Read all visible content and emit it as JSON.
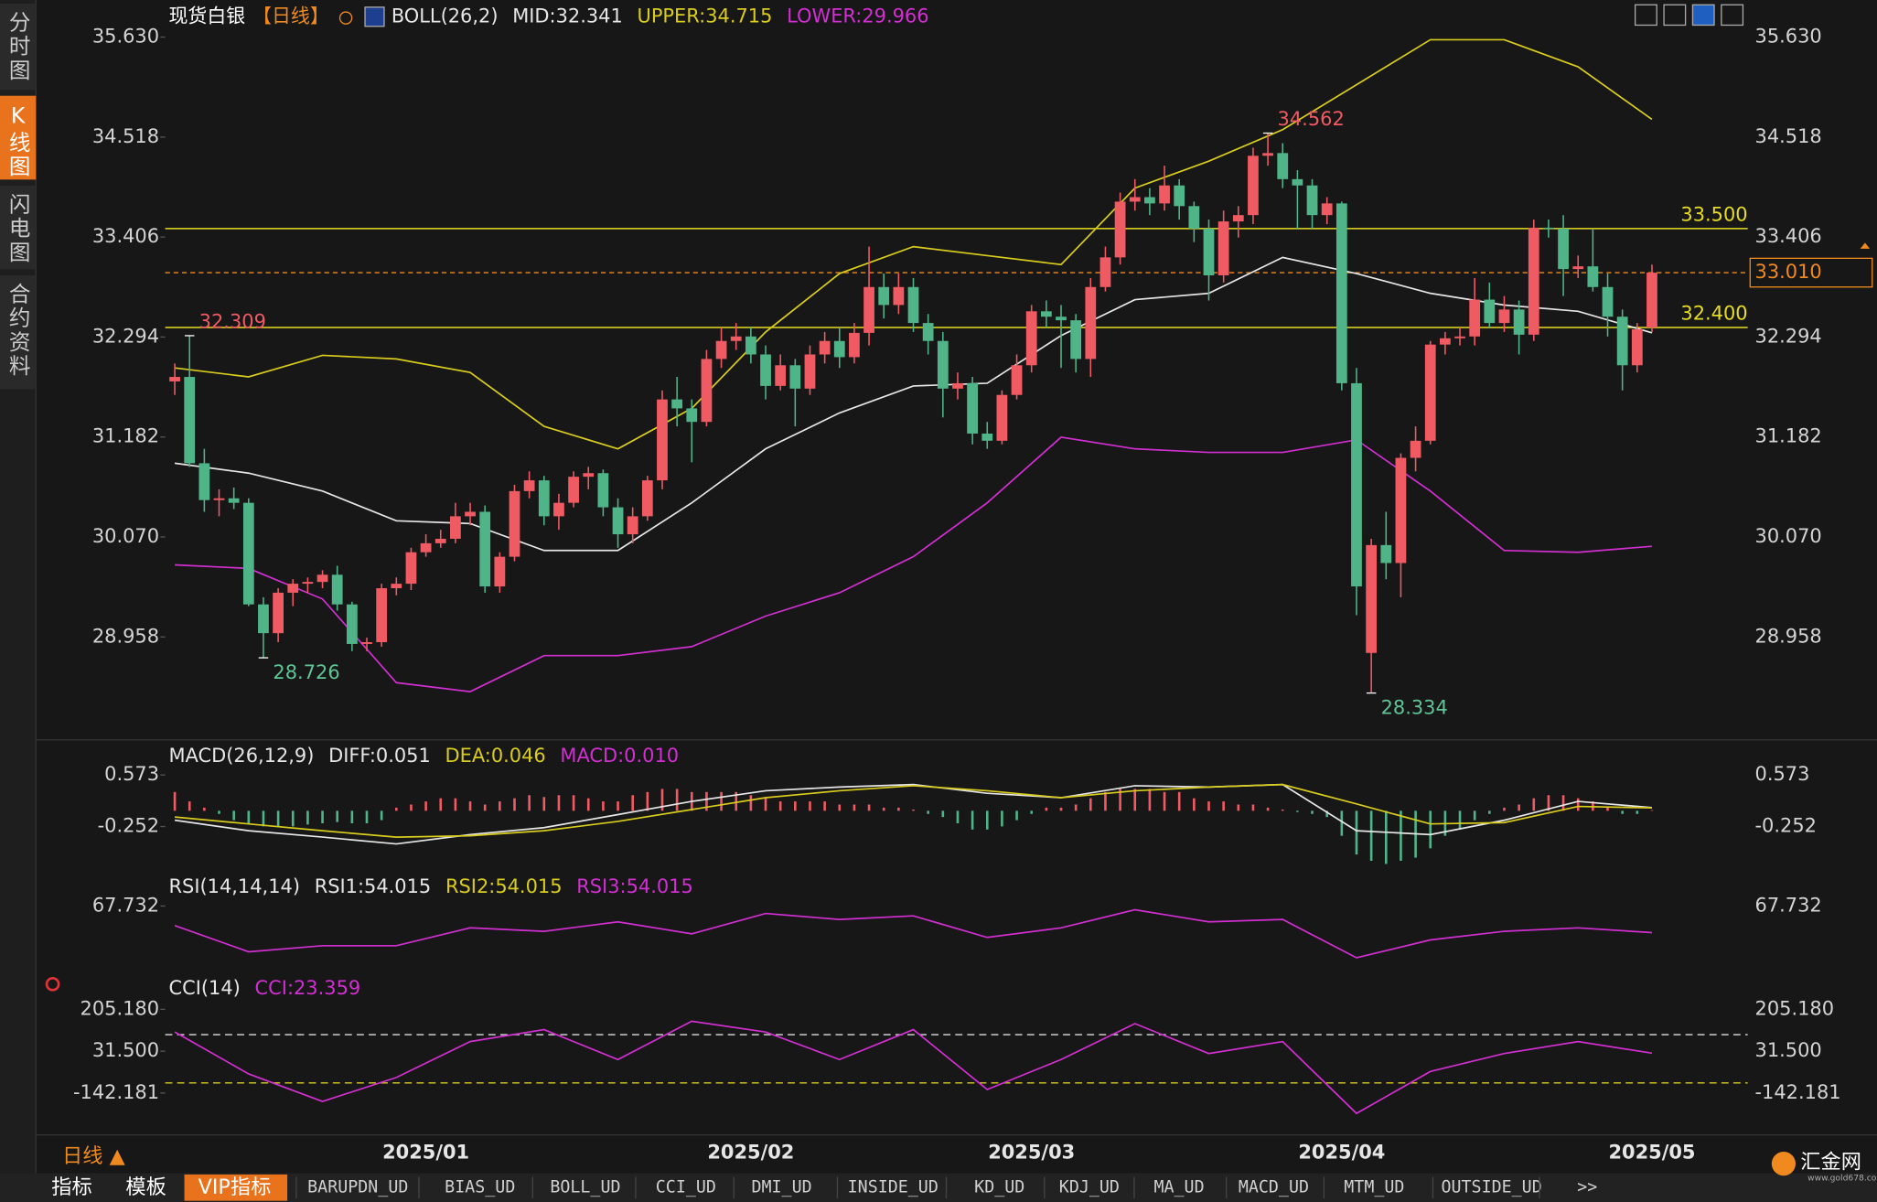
{
  "sidebar": [
    "分时图",
    "K线图",
    "闪电图",
    "合约资料"
  ],
  "bottom_label": "日线 ▲",
  "tabs": [
    "指标",
    "模板",
    "VIP指标",
    "BARUPDN_UD",
    "BIAS_UD",
    "BOLL_UD",
    "CCI_UD",
    "DMI_UD",
    "INSIDE_UD",
    "KD_UD",
    "KDJ_UD",
    "MA_UD",
    "MACD_UD",
    "MTM_UD",
    "OUTSIDE_UD",
    ">>"
  ],
  "logo": {
    "name": "汇金网",
    "url": "www.gold678.com"
  },
  "chart_data": [
    {
      "type": "candlestick",
      "title": "现货白银",
      "period": "【日线】",
      "legend": [
        {
          "text": "BOLL(26,2)",
          "color": "#e6e6e6"
        },
        {
          "text": "MID:32.341",
          "color": "#e6e6e6"
        },
        {
          "text": "UPPER:34.715",
          "color": "#d9cc1e"
        },
        {
          "text": "LOWER:29.966",
          "color": "#d22fd2"
        }
      ],
      "up_color": "#ef5a63",
      "down_color": "#4fb487",
      "categories": [
        null,
        null,
        null,
        null,
        null,
        null,
        null,
        null,
        null,
        null,
        null,
        null,
        null,
        null,
        null,
        null,
        null,
        "2025/01",
        null,
        null,
        null,
        null,
        null,
        null,
        null,
        null,
        null,
        null,
        null,
        null,
        null,
        null,
        null,
        null,
        null,
        null,
        null,
        null,
        null,
        "2025/02",
        null,
        null,
        null,
        null,
        null,
        null,
        null,
        null,
        null,
        null,
        null,
        null,
        null,
        null,
        null,
        null,
        null,
        null,
        "2025/03",
        null,
        null,
        null,
        null,
        null,
        null,
        null,
        null,
        null,
        null,
        null,
        null,
        null,
        null,
        null,
        null,
        null,
        null,
        null,
        null,
        "2025/04",
        null,
        null,
        null,
        null,
        null,
        null,
        null,
        null,
        null,
        null,
        null,
        null,
        null,
        null,
        null,
        null,
        null,
        null,
        null,
        null,
        "2025/05"
      ],
      "candles": [
        [
          31.8,
          32.0,
          31.65,
          31.85
        ],
        [
          31.85,
          32.309,
          30.85,
          30.89
        ],
        [
          30.89,
          31.05,
          30.35,
          30.48
        ],
        [
          30.48,
          30.6,
          30.3,
          30.5
        ],
        [
          30.5,
          30.62,
          30.38,
          30.45
        ],
        [
          30.45,
          30.5,
          29.3,
          29.32
        ],
        [
          29.32,
          29.4,
          28.726,
          29.0
        ],
        [
          29.0,
          29.5,
          28.9,
          29.45
        ],
        [
          29.45,
          29.6,
          29.3,
          29.55
        ],
        [
          29.55,
          29.62,
          29.45,
          29.57
        ],
        [
          29.57,
          29.7,
          29.5,
          29.65
        ],
        [
          29.65,
          29.75,
          29.25,
          29.32
        ],
        [
          29.32,
          29.35,
          28.8,
          28.88
        ],
        [
          28.88,
          28.95,
          28.8,
          28.9
        ],
        [
          28.9,
          29.55,
          28.85,
          29.5
        ],
        [
          29.5,
          29.62,
          29.42,
          29.55
        ],
        [
          29.55,
          29.95,
          29.48,
          29.9
        ],
        [
          29.9,
          30.1,
          29.85,
          30.0
        ],
        [
          30.0,
          30.15,
          29.95,
          30.05
        ],
        [
          30.05,
          30.45,
          30.0,
          30.3
        ],
        [
          30.3,
          30.45,
          30.2,
          30.35
        ],
        [
          30.35,
          30.42,
          29.45,
          29.52
        ],
        [
          29.52,
          29.9,
          29.45,
          29.85
        ],
        [
          29.85,
          30.65,
          29.8,
          30.58
        ],
        [
          30.58,
          30.8,
          30.5,
          30.7
        ],
        [
          30.7,
          30.75,
          30.2,
          30.3
        ],
        [
          30.3,
          30.55,
          30.15,
          30.45
        ],
        [
          30.45,
          30.8,
          30.4,
          30.74
        ],
        [
          30.74,
          30.85,
          30.6,
          30.78
        ],
        [
          30.78,
          30.82,
          30.3,
          30.4
        ],
        [
          30.4,
          30.5,
          29.95,
          30.1
        ],
        [
          30.1,
          30.4,
          30.0,
          30.3
        ],
        [
          30.3,
          30.75,
          30.25,
          30.7
        ],
        [
          30.7,
          31.7,
          30.6,
          31.6
        ],
        [
          31.6,
          31.85,
          31.3,
          31.5
        ],
        [
          31.5,
          31.6,
          30.9,
          31.35
        ],
        [
          31.35,
          32.15,
          31.3,
          32.05
        ],
        [
          32.05,
          32.4,
          31.95,
          32.25
        ],
        [
          32.25,
          32.45,
          32.15,
          32.3
        ],
        [
          32.3,
          32.4,
          32.0,
          32.1
        ],
        [
          32.1,
          32.2,
          31.6,
          31.75
        ],
        [
          31.75,
          32.1,
          31.7,
          31.98
        ],
        [
          31.98,
          32.05,
          31.3,
          31.72
        ],
        [
          31.72,
          32.2,
          31.65,
          32.1
        ],
        [
          32.1,
          32.35,
          32.0,
          32.25
        ],
        [
          32.25,
          32.4,
          31.95,
          32.07
        ],
        [
          32.07,
          32.45,
          32.0,
          32.34
        ],
        [
          32.34,
          33.3,
          32.2,
          32.85
        ],
        [
          32.85,
          33.0,
          32.5,
          32.65
        ],
        [
          32.65,
          33.0,
          32.55,
          32.85
        ],
        [
          32.85,
          32.95,
          32.35,
          32.45
        ],
        [
          32.45,
          32.55,
          32.1,
          32.25
        ],
        [
          32.25,
          32.35,
          31.4,
          31.72
        ],
        [
          31.72,
          31.9,
          31.6,
          31.78
        ],
        [
          31.78,
          31.85,
          31.1,
          31.22
        ],
        [
          31.22,
          31.35,
          31.05,
          31.14
        ],
        [
          31.14,
          31.7,
          31.1,
          31.65
        ],
        [
          31.65,
          32.1,
          31.6,
          31.98
        ],
        [
          31.98,
          32.65,
          31.9,
          32.58
        ],
        [
          32.58,
          32.7,
          32.4,
          32.52
        ],
        [
          32.52,
          32.65,
          31.95,
          32.48
        ],
        [
          32.48,
          32.55,
          31.9,
          32.05
        ],
        [
          32.05,
          32.95,
          31.85,
          32.85
        ],
        [
          32.85,
          33.3,
          32.8,
          33.18
        ],
        [
          33.18,
          33.9,
          33.1,
          33.8
        ],
        [
          33.8,
          34.05,
          33.7,
          33.85
        ],
        [
          33.85,
          33.95,
          33.65,
          33.78
        ],
        [
          33.78,
          34.2,
          33.7,
          33.98
        ],
        [
          33.98,
          34.05,
          33.6,
          33.75
        ],
        [
          33.75,
          33.8,
          33.35,
          33.5
        ],
        [
          33.5,
          33.6,
          32.7,
          32.98
        ],
        [
          32.98,
          33.7,
          32.9,
          33.58
        ],
        [
          33.58,
          33.75,
          33.4,
          33.65
        ],
        [
          33.65,
          34.4,
          33.55,
          34.31
        ],
        [
          34.31,
          34.562,
          34.2,
          34.34
        ],
        [
          34.34,
          34.45,
          33.95,
          34.05
        ],
        [
          34.05,
          34.15,
          33.5,
          33.98
        ],
        [
          33.98,
          34.05,
          33.5,
          33.65
        ],
        [
          33.65,
          33.85,
          33.55,
          33.78
        ],
        [
          33.78,
          33.8,
          31.7,
          31.78
        ],
        [
          31.78,
          31.95,
          29.2,
          29.52
        ],
        [
          28.78,
          30.05,
          28.334,
          29.98
        ],
        [
          29.98,
          30.35,
          29.6,
          29.78
        ],
        [
          29.78,
          31.0,
          29.4,
          30.95
        ],
        [
          30.95,
          31.3,
          30.8,
          31.14
        ],
        [
          31.14,
          32.25,
          31.1,
          32.21
        ],
        [
          32.21,
          32.35,
          32.1,
          32.28
        ],
        [
          32.28,
          32.4,
          32.2,
          32.3
        ],
        [
          32.3,
          32.95,
          32.2,
          32.71
        ],
        [
          32.71,
          32.9,
          32.4,
          32.45
        ],
        [
          32.45,
          32.75,
          32.35,
          32.6
        ],
        [
          32.6,
          32.7,
          32.1,
          32.32
        ],
        [
          32.32,
          33.6,
          32.25,
          33.51
        ],
        [
          33.51,
          33.6,
          33.4,
          33.5
        ],
        [
          33.5,
          33.65,
          32.75,
          33.05
        ],
        [
          33.05,
          33.2,
          32.95,
          33.08
        ],
        [
          33.08,
          33.5,
          32.8,
          32.85
        ],
        [
          32.85,
          33.0,
          32.3,
          32.52
        ],
        [
          32.52,
          32.6,
          31.7,
          31.98
        ],
        [
          31.98,
          32.45,
          31.9,
          32.38
        ],
        [
          32.4,
          33.1,
          32.35,
          33.01
        ]
      ],
      "x": [
        0,
        5,
        10,
        15,
        20,
        25,
        30,
        35,
        40,
        45,
        50,
        55,
        60,
        65,
        70,
        75,
        80,
        85,
        90,
        95,
        100
      ],
      "series": [
        {
          "color": "#e6e6e6",
          "values": [
            30.89,
            30.78,
            30.58,
            30.25,
            30.22,
            29.92,
            29.92,
            30.45,
            31.05,
            31.45,
            31.75,
            31.78,
            32.31,
            32.71,
            32.78,
            33.18,
            33.0,
            32.78,
            32.65,
            32.58,
            32.341
          ]
        },
        {
          "color": "#d9cc1e",
          "values": [
            31.95,
            31.85,
            32.09,
            32.05,
            31.9,
            31.3,
            31.05,
            31.5,
            32.35,
            33.0,
            33.3,
            33.2,
            33.1,
            33.95,
            34.25,
            34.6,
            35.1,
            35.6,
            35.6,
            35.3,
            34.715
          ]
        },
        {
          "color": "#d22fd2",
          "values": [
            29.76,
            29.72,
            29.38,
            28.45,
            28.35,
            28.75,
            28.75,
            28.85,
            29.19,
            29.45,
            29.85,
            30.45,
            31.18,
            31.05,
            31.01,
            31.01,
            31.15,
            30.58,
            29.92,
            29.9,
            29.966
          ]
        }
      ],
      "price_lines": [
        {
          "value": 33.5,
          "label": "33.500",
          "color": "#e6dc22"
        },
        {
          "value": 32.4,
          "label": "32.400",
          "color": "#e6dc22"
        }
      ],
      "last_price": {
        "value": 33.01,
        "label": "33.010",
        "color": "#f08a1e"
      },
      "annotations": [
        {
          "value": 32.309,
          "kind": "high"
        },
        {
          "value": 28.726,
          "kind": "low"
        },
        {
          "value": 34.562,
          "kind": "high"
        },
        {
          "value": 28.334,
          "kind": "low"
        }
      ],
      "ylim": [
        27.893,
        35.976
      ],
      "yticks": [
        {
          "value": 35.63,
          "label": "35.630"
        },
        34.518,
        33.406,
        32.294,
        31.182,
        {
          "value": 30.07,
          "label": "30.070"
        },
        28.958
      ]
    },
    {
      "type": "macd",
      "legend": [
        {
          "text": "MACD(26,12,9)",
          "color": "#e6e6e6"
        },
        {
          "text": "DIFF:0.051",
          "color": "#e6e6e6"
        },
        {
          "text": "DEA:0.046",
          "color": "#d9cc1e"
        },
        {
          "text": "MACD:0.010",
          "color": "#d22fd2"
        }
      ],
      "x": [
        0,
        5,
        10,
        15,
        20,
        25,
        30,
        35,
        40,
        45,
        50,
        55,
        60,
        65,
        70,
        75,
        80,
        85,
        90,
        95,
        100
      ],
      "series": [
        {
          "color": "#e6e6e6",
          "values": [
            -0.15,
            -0.32,
            -0.42,
            -0.53,
            -0.38,
            -0.27,
            -0.06,
            0.15,
            0.32,
            0.38,
            0.42,
            0.28,
            0.21,
            0.4,
            0.38,
            0.42,
            -0.32,
            -0.38,
            -0.15,
            0.15,
            0.051
          ]
        },
        {
          "color": "#d9cc1e",
          "values": [
            -0.1,
            -0.21,
            -0.32,
            -0.42,
            -0.4,
            -0.32,
            -0.17,
            0.02,
            0.21,
            0.32,
            0.4,
            0.32,
            0.21,
            0.32,
            0.38,
            0.42,
            0.11,
            -0.21,
            -0.19,
            0.07,
            0.046
          ]
        }
      ],
      "histogram": [
        0.3,
        0.15,
        0.05,
        -0.05,
        -0.15,
        -0.2,
        -0.25,
        -0.25,
        -0.25,
        -0.22,
        -0.2,
        -0.18,
        -0.2,
        -0.2,
        -0.15,
        0.05,
        0.1,
        0.15,
        0.2,
        0.2,
        0.15,
        0.1,
        0.15,
        0.2,
        0.25,
        0.22,
        0.25,
        0.25,
        0.2,
        0.15,
        0.15,
        0.25,
        0.3,
        0.35,
        0.35,
        0.3,
        0.3,
        0.3,
        0.3,
        0.25,
        0.2,
        0.15,
        0.15,
        0.15,
        0.15,
        0.1,
        0.1,
        0.1,
        0.05,
        0.05,
        0.02,
        -0.05,
        -0.1,
        -0.2,
        -0.3,
        -0.3,
        -0.25,
        -0.15,
        -0.05,
        0.05,
        0.05,
        0.1,
        0.2,
        0.3,
        0.35,
        0.35,
        0.35,
        0.3,
        0.3,
        0.2,
        0.15,
        0.15,
        0.1,
        0.1,
        0.05,
        0.02,
        -0.02,
        -0.05,
        -0.1,
        -0.4,
        -0.7,
        -0.8,
        -0.85,
        -0.8,
        -0.75,
        -0.6,
        -0.4,
        -0.3,
        -0.15,
        -0.05,
        0.05,
        0.1,
        0.2,
        0.25,
        0.25,
        0.2,
        0.15,
        0.05,
        -0.05,
        -0.05,
        0.01
      ],
      "ylim": [
        -0.915,
        0.713
      ],
      "yticks": [
        0.573,
        -0.252
      ]
    },
    {
      "type": "line",
      "legend": [
        {
          "text": "RSI(14,14,14)",
          "color": "#e6e6e6"
        },
        {
          "text": "RSI1:54.015",
          "color": "#e6e6e6"
        },
        {
          "text": "RSI2:54.015",
          "color": "#d9cc1e"
        },
        {
          "text": "RSI3:54.015",
          "color": "#d22fd2"
        }
      ],
      "x": [
        0,
        5,
        10,
        15,
        20,
        25,
        30,
        35,
        40,
        45,
        50,
        55,
        60,
        65,
        70,
        75,
        80,
        85,
        90,
        95,
        100
      ],
      "series": [
        {
          "color": "#d22fd2",
          "values": [
            57.7,
            44.2,
            47.3,
            47.3,
            56.5,
            54.7,
            59.6,
            53.4,
            63.9,
            60.8,
            62.7,
            51.6,
            56.5,
            65.8,
            59.6,
            60.8,
            41.1,
            50.3,
            54.7,
            56.5,
            54.015
          ]
        }
      ],
      "ylim": [
        30,
        75
      ],
      "yticks": [
        67.732
      ]
    },
    {
      "type": "line",
      "legend": [
        {
          "text": "CCI(14)",
          "color": "#e6e6e6"
        },
        {
          "text": "CCI:23.359",
          "color": "#d22fd2"
        }
      ],
      "x": [
        0,
        5,
        10,
        15,
        20,
        25,
        30,
        35,
        40,
        45,
        50,
        55,
        60,
        65,
        70,
        75,
        80,
        85,
        90,
        95,
        100
      ],
      "series": [
        {
          "color": "#d22fd2",
          "values": [
            110.9,
            -62.8,
            -176.9,
            -77.7,
            71.2,
            120.8,
            -3.3,
            155.6,
            110.9,
            -3.3,
            120.8,
            -127.3,
            -3.3,
            145.7,
            21.6,
            71.2,
            -226.6,
            -52.9,
            21.6,
            71.2,
            23.359
          ]
        }
      ],
      "levels": [
        {
          "value": 100,
          "color": "#dddddd"
        },
        {
          "value": -100,
          "color": "#d9cc1e"
        }
      ],
      "ylim": [
        -316,
        270
      ],
      "yticks": [
        {
          "value": 205.18,
          "label": "205.180"
        },
        {
          "value": 31.5,
          "label": "31.500"
        },
        -142.181
      ]
    }
  ]
}
